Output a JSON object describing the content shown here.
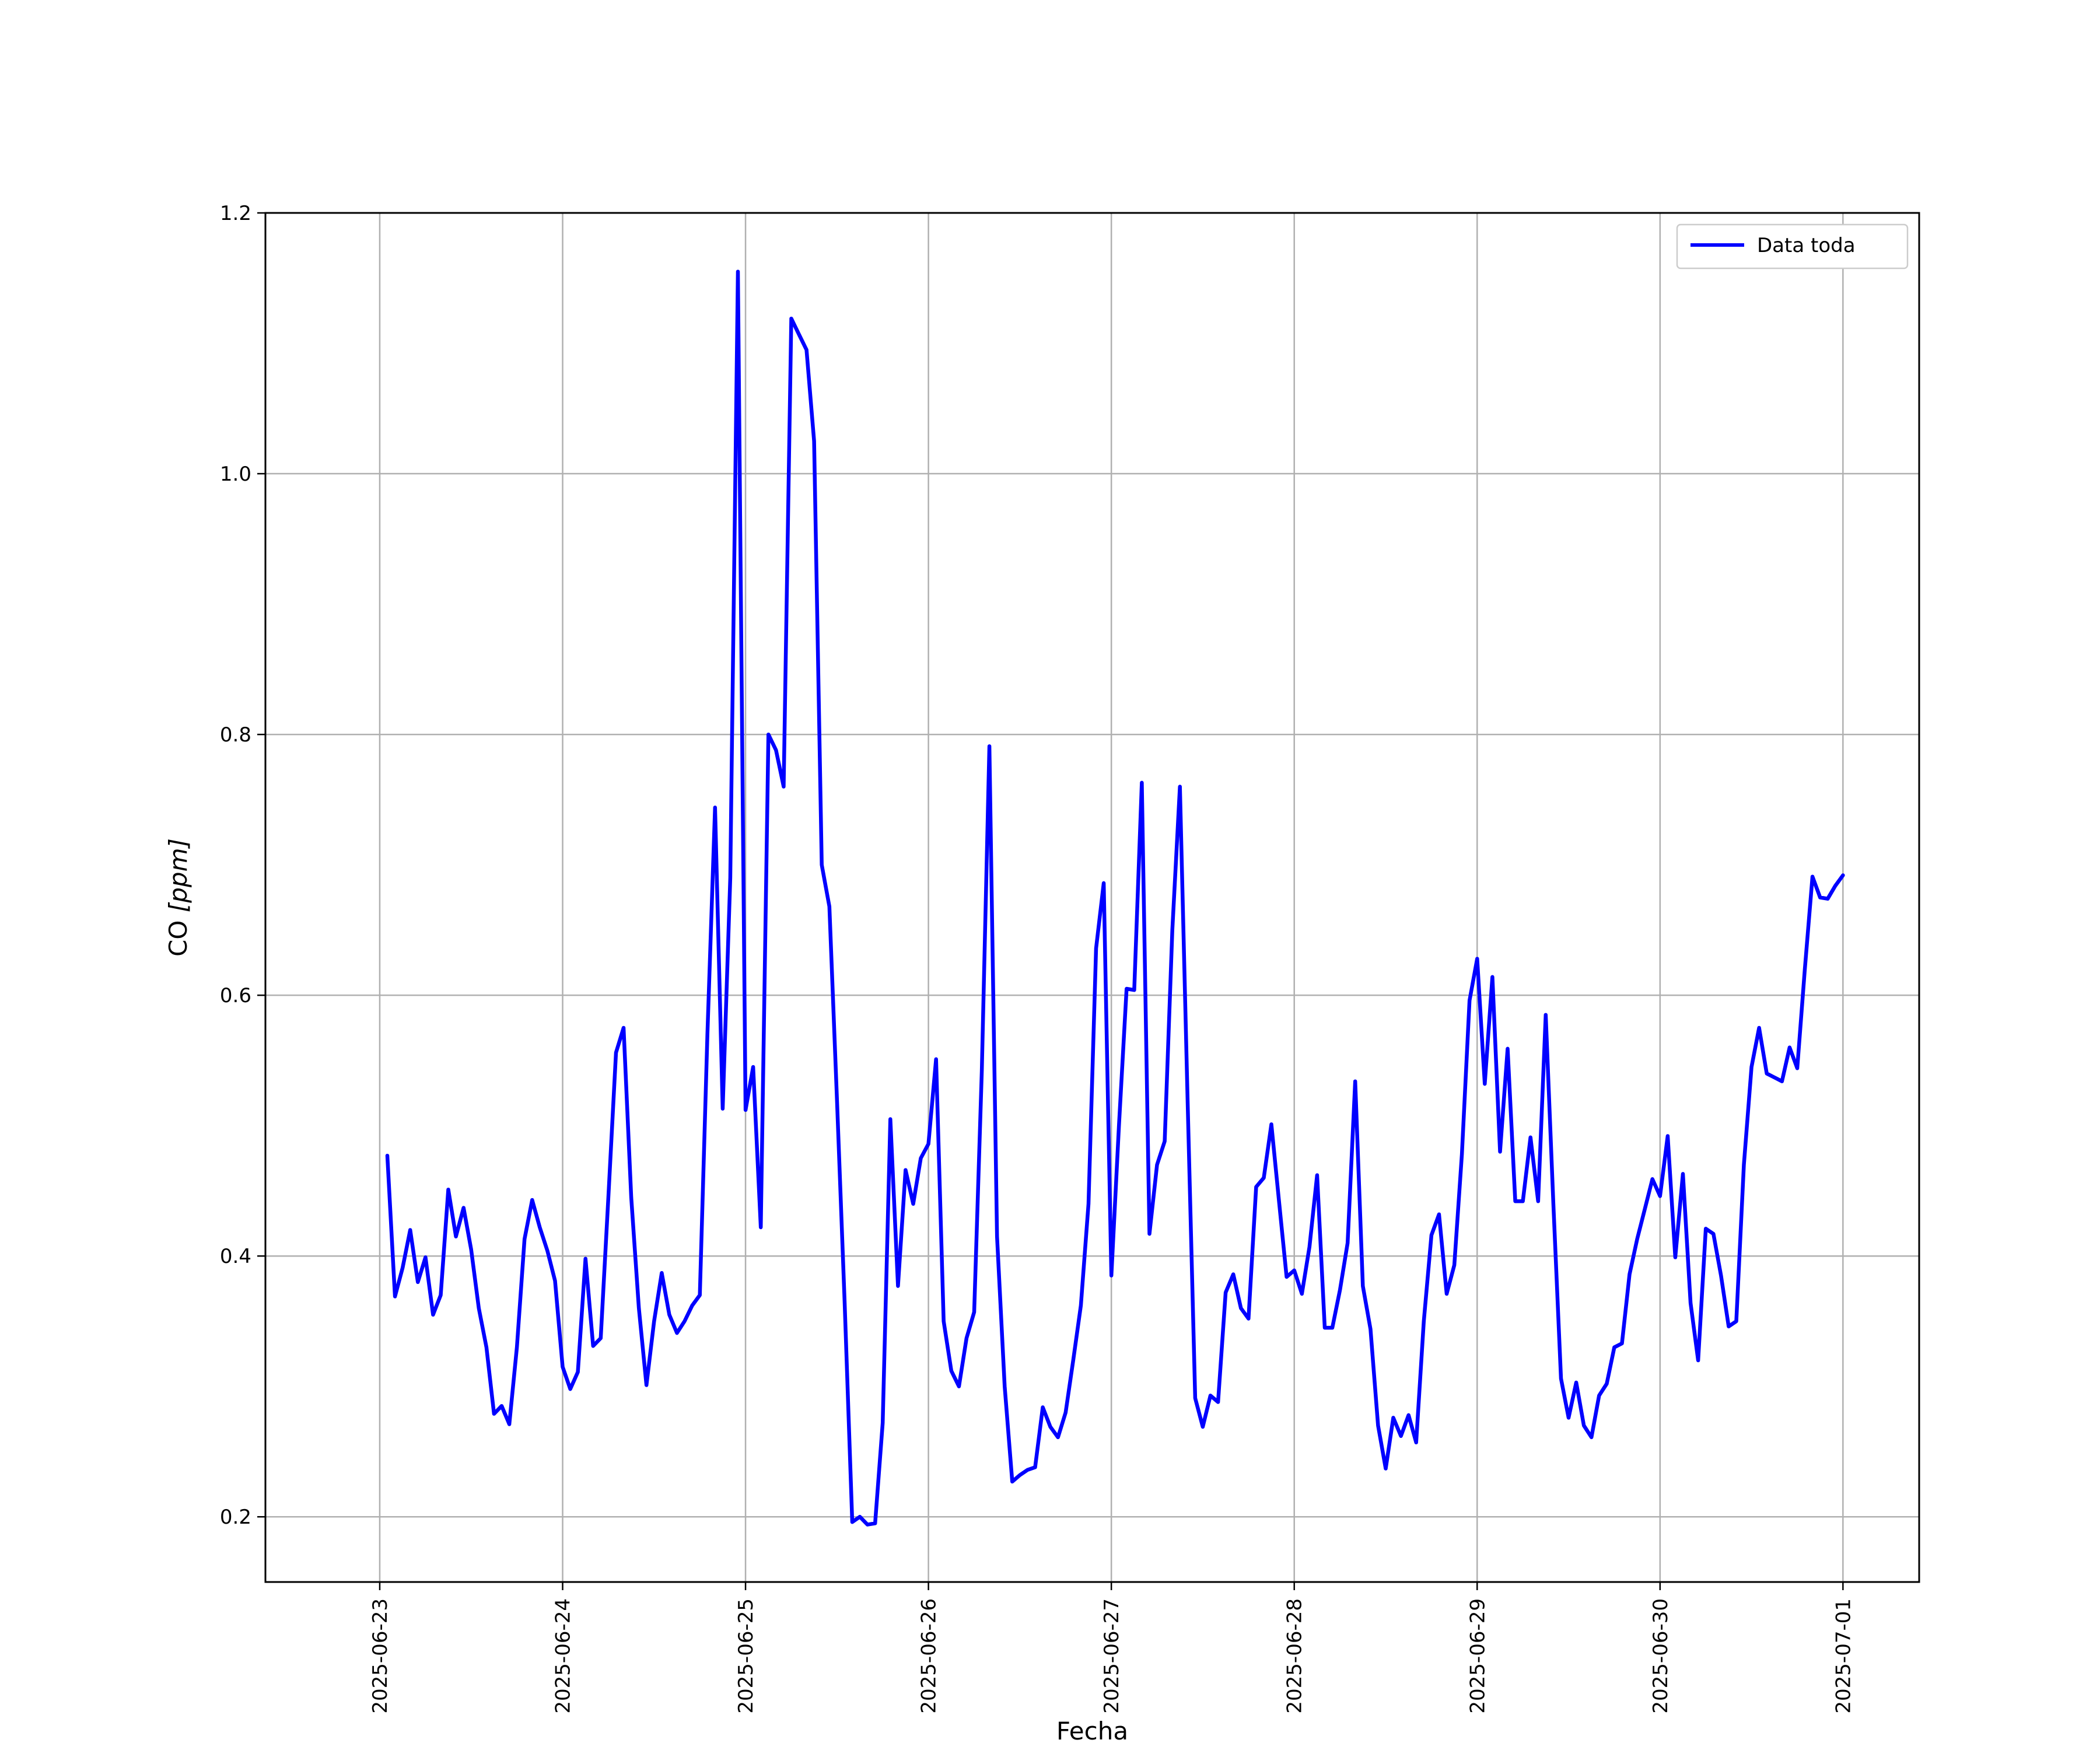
{
  "chart_data": {
    "type": "line",
    "title": "",
    "xlabel": "Fecha",
    "ylabel": "CO [ppm]",
    "ylabel_plain": "CO ",
    "ylabel_unit": "[ppm]",
    "xlim": [
      "2025-06-22T09:00",
      "2025-07-01T10:00"
    ],
    "ylim": [
      0.15,
      1.2
    ],
    "grid": true,
    "legend": {
      "placement": "top-right"
    },
    "xticks": [
      "2025-06-23",
      "2025-06-24",
      "2025-06-25",
      "2025-06-26",
      "2025-06-27",
      "2025-06-28",
      "2025-06-29",
      "2025-06-30",
      "2025-07-01"
    ],
    "yticks": [
      0.2,
      0.4,
      0.6,
      0.8,
      1.0,
      1.2
    ],
    "ytick_labels": [
      "0.2",
      "0.4",
      "0.6",
      "0.8",
      "1.0",
      "1.2"
    ],
    "series": [
      {
        "name": "Data toda",
        "color": "#0000ff",
        "x": [
          "2025-06-23T01:00",
          "2025-06-23T02:00",
          "2025-06-23T03:00",
          "2025-06-23T04:00",
          "2025-06-23T05:00",
          "2025-06-23T06:00",
          "2025-06-23T07:00",
          "2025-06-23T08:00",
          "2025-06-23T09:00",
          "2025-06-23T10:00",
          "2025-06-23T11:00",
          "2025-06-23T12:00",
          "2025-06-23T13:00",
          "2025-06-23T14:00",
          "2025-06-23T15:00",
          "2025-06-23T16:00",
          "2025-06-23T17:00",
          "2025-06-23T18:00",
          "2025-06-23T19:00",
          "2025-06-23T20:00",
          "2025-06-23T21:00",
          "2025-06-23T22:00",
          "2025-06-23T23:00",
          "2025-06-24T00:00",
          "2025-06-24T01:00",
          "2025-06-24T02:00",
          "2025-06-24T03:00",
          "2025-06-24T04:00",
          "2025-06-24T05:00",
          "2025-06-24T06:00",
          "2025-06-24T07:00",
          "2025-06-24T08:00",
          "2025-06-24T09:00",
          "2025-06-24T10:00",
          "2025-06-24T11:00",
          "2025-06-24T12:00",
          "2025-06-24T13:00",
          "2025-06-24T14:00",
          "2025-06-24T15:00",
          "2025-06-24T16:00",
          "2025-06-24T17:00",
          "2025-06-24T18:00",
          "2025-06-24T19:00",
          "2025-06-24T20:00",
          "2025-06-24T21:00",
          "2025-06-24T22:00",
          "2025-06-24T23:00",
          "2025-06-25T00:00",
          "2025-06-25T01:00",
          "2025-06-25T02:00",
          "2025-06-25T03:00",
          "2025-06-25T04:00",
          "2025-06-25T05:00",
          "2025-06-25T06:00",
          "2025-06-25T07:00",
          "2025-06-25T08:00",
          "2025-06-25T09:00",
          "2025-06-25T10:00",
          "2025-06-25T11:00",
          "2025-06-25T12:00",
          "2025-06-25T13:00",
          "2025-06-25T14:00",
          "2025-06-25T15:00",
          "2025-06-25T16:00",
          "2025-06-25T17:00",
          "2025-06-25T18:00",
          "2025-06-25T19:00",
          "2025-06-25T20:00",
          "2025-06-25T21:00",
          "2025-06-25T22:00",
          "2025-06-25T23:00",
          "2025-06-26T00:00",
          "2025-06-26T01:00",
          "2025-06-26T02:00",
          "2025-06-26T03:00",
          "2025-06-26T04:00",
          "2025-06-26T05:00",
          "2025-06-26T06:00",
          "2025-06-26T07:00",
          "2025-06-26T08:00",
          "2025-06-26T09:00",
          "2025-06-26T10:00",
          "2025-06-26T11:00",
          "2025-06-26T12:00",
          "2025-06-26T13:00",
          "2025-06-26T14:00",
          "2025-06-26T15:00",
          "2025-06-26T16:00",
          "2025-06-26T17:00",
          "2025-06-26T18:00",
          "2025-06-26T19:00",
          "2025-06-26T20:00",
          "2025-06-26T21:00",
          "2025-06-26T22:00",
          "2025-06-26T23:00",
          "2025-06-27T00:00",
          "2025-06-27T01:00",
          "2025-06-27T02:00",
          "2025-06-27T03:00",
          "2025-06-27T04:00",
          "2025-06-27T05:00",
          "2025-06-27T06:00",
          "2025-06-27T07:00",
          "2025-06-27T08:00",
          "2025-06-27T09:00",
          "2025-06-27T10:00",
          "2025-06-27T11:00",
          "2025-06-27T12:00",
          "2025-06-27T13:00",
          "2025-06-27T14:00",
          "2025-06-27T15:00",
          "2025-06-27T16:00",
          "2025-06-27T17:00",
          "2025-06-27T18:00",
          "2025-06-27T19:00",
          "2025-06-27T20:00",
          "2025-06-27T21:00",
          "2025-06-27T22:00",
          "2025-06-27T23:00",
          "2025-06-28T00:00",
          "2025-06-28T01:00",
          "2025-06-28T02:00",
          "2025-06-28T03:00",
          "2025-06-28T04:00",
          "2025-06-28T05:00",
          "2025-06-28T06:00",
          "2025-06-28T07:00",
          "2025-06-28T08:00",
          "2025-06-28T09:00",
          "2025-06-28T10:00",
          "2025-06-28T11:00",
          "2025-06-28T12:00",
          "2025-06-28T13:00",
          "2025-06-28T14:00",
          "2025-06-28T15:00",
          "2025-06-28T16:00",
          "2025-06-28T17:00",
          "2025-06-28T18:00",
          "2025-06-28T19:00",
          "2025-06-28T20:00",
          "2025-06-28T21:00",
          "2025-06-28T22:00",
          "2025-06-28T23:00",
          "2025-06-29T00:00",
          "2025-06-29T01:00",
          "2025-06-29T02:00",
          "2025-06-29T03:00",
          "2025-06-29T04:00",
          "2025-06-29T05:00",
          "2025-06-29T06:00",
          "2025-06-29T07:00",
          "2025-06-29T08:00",
          "2025-06-29T09:00",
          "2025-06-29T10:00",
          "2025-06-29T11:00",
          "2025-06-29T12:00",
          "2025-06-29T13:00",
          "2025-06-29T14:00",
          "2025-06-29T15:00",
          "2025-06-29T16:00",
          "2025-06-29T17:00",
          "2025-06-29T18:00",
          "2025-06-29T19:00",
          "2025-06-29T20:00",
          "2025-06-29T21:00",
          "2025-06-29T22:00",
          "2025-06-29T23:00",
          "2025-06-30T00:00",
          "2025-06-30T01:00",
          "2025-06-30T02:00",
          "2025-06-30T03:00",
          "2025-06-30T04:00",
          "2025-06-30T05:00",
          "2025-06-30T06:00",
          "2025-06-30T07:00",
          "2025-06-30T08:00",
          "2025-06-30T09:00",
          "2025-06-30T10:00",
          "2025-06-30T11:00",
          "2025-06-30T12:00",
          "2025-06-30T13:00",
          "2025-06-30T14:00",
          "2025-06-30T15:00",
          "2025-06-30T16:00",
          "2025-06-30T17:00",
          "2025-06-30T18:00",
          "2025-06-30T19:00",
          "2025-06-30T20:00",
          "2025-06-30T21:00",
          "2025-06-30T22:00",
          "2025-06-30T23:00",
          "2025-07-01T00:00"
        ],
        "y": [
          0.477,
          0.369,
          0.391,
          0.42,
          0.38,
          0.399,
          0.355,
          0.37,
          0.451,
          0.415,
          0.437,
          0.405,
          0.36,
          0.33,
          0.279,
          0.285,
          0.271,
          0.33,
          0.413,
          0.443,
          0.422,
          0.404,
          0.381,
          0.315,
          0.298,
          0.311,
          0.398,
          0.331,
          0.337,
          0.445,
          0.556,
          0.575,
          0.445,
          0.36,
          0.301,
          0.35,
          0.387,
          0.355,
          0.341,
          0.35,
          0.362,
          0.37,
          0.57,
          0.744,
          0.513,
          0.69,
          1.155,
          0.512,
          0.545,
          0.422,
          0.8,
          0.788,
          0.76,
          1.119,
          1.107,
          1.095,
          1.025,
          0.7,
          0.668,
          0.52,
          0.365,
          0.196,
          0.2,
          0.194,
          0.195,
          0.272,
          0.505,
          0.377,
          0.466,
          0.44,
          0.475,
          0.486,
          0.551,
          0.35,
          0.312,
          0.3,
          0.337,
          0.357,
          0.542,
          0.791,
          0.415,
          0.3,
          0.227,
          0.232,
          0.236,
          0.238,
          0.284,
          0.269,
          0.261,
          0.28,
          0.32,
          0.362,
          0.44,
          0.636,
          0.686,
          0.385,
          0.5,
          0.605,
          0.604,
          0.763,
          0.417,
          0.47,
          0.488,
          0.65,
          0.76,
          0.521,
          0.291,
          0.269,
          0.293,
          0.288,
          0.372,
          0.386,
          0.36,
          0.352,
          0.453,
          0.46,
          0.501,
          0.442,
          0.384,
          0.389,
          0.371,
          0.407,
          0.462,
          0.345,
          0.345,
          0.374,
          0.41,
          0.534,
          0.377,
          0.344,
          0.27,
          0.237,
          0.276,
          0.262,
          0.278,
          0.257,
          0.35,
          0.416,
          0.432,
          0.371,
          0.393,
          0.478,
          0.596,
          0.628,
          0.532,
          0.614,
          0.48,
          0.559,
          0.442,
          0.442,
          0.491,
          0.442,
          0.585,
          0.44,
          0.306,
          0.276,
          0.303,
          0.27,
          0.261,
          0.293,
          0.302,
          0.33,
          0.333,
          0.386,
          0.413,
          0.436,
          0.459,
          0.446,
          0.492,
          0.399,
          0.463,
          0.364,
          0.32,
          0.421,
          0.417,
          0.385,
          0.346,
          0.35,
          0.47,
          0.545,
          0.575,
          0.54,
          0.537,
          0.534,
          0.56,
          0.544,
          0.62,
          0.691,
          0.675,
          0.674,
          0.684,
          0.692
        ]
      }
    ]
  }
}
